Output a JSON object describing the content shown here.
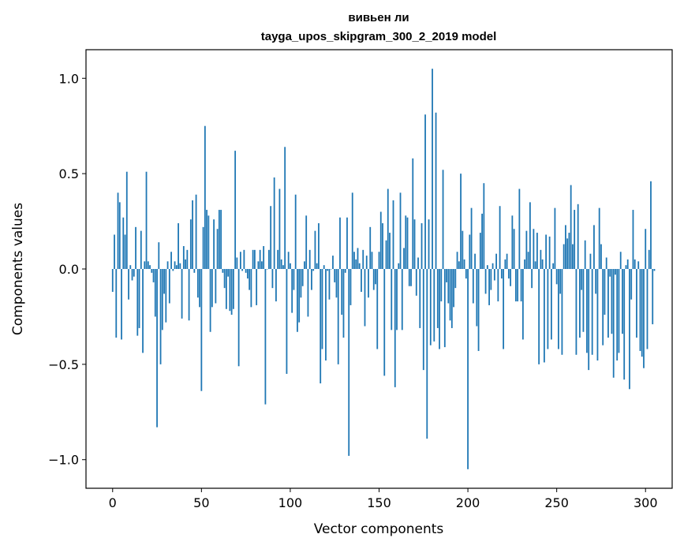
{
  "chart_data": {
    "type": "bar",
    "title": "вивьен ли",
    "subtitle": "tayga_upos_skipgram_300_2_2019 model",
    "xlabel": "Vector components",
    "ylabel": "Components values",
    "xlim": [
      -15,
      315
    ],
    "ylim": [
      -1.15,
      1.15
    ],
    "xticks": [
      0,
      50,
      100,
      150,
      200,
      250,
      300
    ],
    "xtick_labels": [
      "0",
      "50",
      "100",
      "150",
      "200",
      "250",
      "300"
    ],
    "yticks": [
      -1.0,
      -0.5,
      0.0,
      0.5,
      1.0
    ],
    "ytick_labels": [
      "−1.0",
      "−0.5",
      "0.0",
      "0.5",
      "1.0"
    ],
    "grid": false,
    "bar_color": "#1f77b4",
    "values": [
      -0.12,
      0.18,
      -0.36,
      0.4,
      0.35,
      -0.37,
      0.27,
      0.18,
      0.51,
      -0.16,
      0.02,
      -0.06,
      -0.04,
      0.22,
      -0.35,
      -0.31,
      0.2,
      -0.44,
      0.04,
      0.51,
      0.04,
      0.02,
      -0.02,
      -0.07,
      -0.25,
      -0.83,
      0.14,
      -0.5,
      -0.32,
      -0.13,
      -0.28,
      0.04,
      -0.18,
      0.09,
      -0.01,
      0.04,
      0.02,
      0.24,
      0.03,
      -0.26,
      0.12,
      0.05,
      0.1,
      -0.27,
      0.26,
      0.36,
      -0.02,
      0.39,
      -0.15,
      -0.2,
      -0.64,
      0.22,
      0.75,
      0.31,
      0.28,
      -0.33,
      -0.2,
      0.26,
      -0.18,
      0.21,
      0.31,
      0.31,
      -0.02,
      -0.1,
      -0.21,
      -0.04,
      -0.22,
      -0.24,
      -0.21,
      0.62,
      0.06,
      -0.51,
      0.09,
      -0.01,
      0.1,
      -0.02,
      -0.05,
      -0.11,
      -0.2,
      0.1,
      0.1,
      -0.19,
      0.04,
      0.1,
      0.04,
      0.12,
      -0.71,
      0.0,
      0.1,
      0.33,
      -0.1,
      0.48,
      -0.17,
      0.1,
      0.42,
      0.05,
      0.02,
      0.64,
      -0.55,
      0.09,
      0.03,
      -0.23,
      -0.11,
      0.39,
      -0.33,
      -0.28,
      -0.15,
      -0.09,
      0.04,
      0.28,
      -0.25,
      0.1,
      -0.11,
      -0.01,
      0.2,
      0.03,
      0.24,
      -0.6,
      -0.42,
      0.02,
      -0.48,
      -0.01,
      -0.16,
      0.0,
      0.07,
      -0.07,
      -0.15,
      -0.5,
      0.27,
      -0.24,
      -0.36,
      -0.02,
      0.27,
      -0.98,
      -0.19,
      0.4,
      0.09,
      0.05,
      0.11,
      0.03,
      -0.12,
      0.1,
      -0.3,
      0.07,
      -0.15,
      0.22,
      0.09,
      -0.11,
      -0.08,
      -0.42,
      0.09,
      0.3,
      0.24,
      -0.56,
      0.15,
      0.42,
      0.19,
      -0.32,
      0.36,
      -0.62,
      -0.32,
      0.03,
      0.4,
      -0.32,
      0.11,
      0.28,
      0.27,
      -0.09,
      -0.09,
      0.58,
      0.26,
      -0.14,
      0.06,
      -0.31,
      0.24,
      -0.53,
      0.81,
      -0.89,
      0.26,
      -0.4,
      1.05,
      -0.38,
      0.82,
      -0.31,
      -0.42,
      -0.17,
      0.52,
      -0.41,
      -0.07,
      -0.18,
      -0.27,
      -0.31,
      -0.2,
      -0.1,
      0.09,
      0.04,
      0.5,
      0.2,
      0.05,
      -0.05,
      -1.05,
      0.18,
      0.32,
      -0.18,
      0.08,
      -0.3,
      -0.43,
      0.19,
      0.29,
      0.45,
      -0.13,
      0.02,
      -0.19,
      -0.11,
      0.03,
      -0.06,
      0.08,
      -0.17,
      0.33,
      -0.05,
      -0.42,
      0.05,
      0.08,
      -0.05,
      -0.09,
      0.28,
      0.21,
      -0.17,
      -0.17,
      0.42,
      -0.17,
      -0.37,
      0.05,
      0.2,
      0.09,
      0.35,
      -0.1,
      0.21,
      0.04,
      0.19,
      -0.5,
      0.1,
      0.05,
      -0.49,
      0.18,
      -0.42,
      0.17,
      -0.37,
      0.03,
      0.32,
      -0.08,
      -0.42,
      -0.13,
      -0.45,
      0.13,
      0.23,
      0.16,
      0.19,
      0.44,
      0.13,
      0.31,
      -0.45,
      0.34,
      -0.36,
      -0.11,
      -0.33,
      0.15,
      -0.44,
      -0.53,
      0.08,
      -0.45,
      0.23,
      -0.13,
      -0.48,
      0.32,
      0.13,
      -0.4,
      -0.24,
      0.06,
      -0.36,
      -0.04,
      -0.34,
      -0.57,
      -0.03,
      -0.48,
      -0.44,
      0.09,
      -0.34,
      -0.58,
      0.02,
      0.05,
      -0.63,
      -0.16,
      0.31,
      0.05,
      -0.36,
      0.04,
      -0.43,
      -0.46,
      -0.52,
      0.21,
      -0.42,
      0.1,
      0.46,
      -0.29,
      -0.01
    ]
  }
}
